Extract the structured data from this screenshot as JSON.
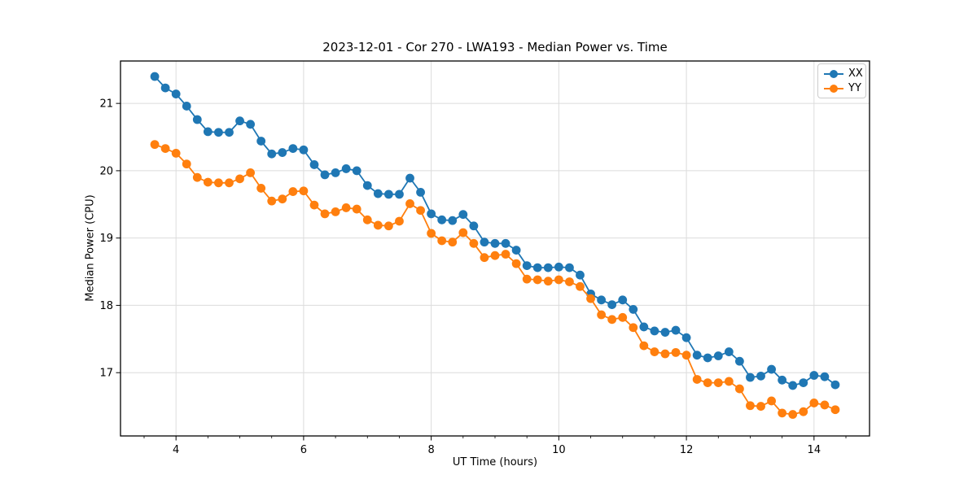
{
  "figure": {
    "title": "2023-12-01 - Cor 270 - LWA193 - Median Power vs. Time",
    "xlabel": "UT Time (hours)",
    "ylabel": "Median Power (CPU)"
  },
  "chart_data": {
    "type": "line",
    "title": "2023-12-01 - Cor 270 - LWA193 - Median Power vs. Time",
    "xlabel": "UT Time (hours)",
    "ylabel": "Median Power (CPU)",
    "xlim": [
      3.13,
      14.87
    ],
    "ylim": [
      16.06,
      21.63
    ],
    "xticks": [
      4,
      6,
      8,
      10,
      12,
      14
    ],
    "yticks": [
      17,
      18,
      19,
      20,
      21
    ],
    "minor_xtick_step": 0.5,
    "grid": true,
    "grid_color": "#dcdcdc",
    "legend": {
      "position": "upper right",
      "entries": [
        "XX",
        "YY"
      ]
    },
    "marker": "o",
    "x": [
      3.6667,
      3.8333,
      4,
      4.1667,
      4.3333,
      4.5,
      4.6667,
      4.8333,
      5,
      5.1667,
      5.3333,
      5.5,
      5.6667,
      5.8333,
      6,
      6.1667,
      6.3333,
      6.5,
      6.6667,
      6.8333,
      7,
      7.1667,
      7.3333,
      7.5,
      7.6667,
      7.8333,
      8,
      8.1667,
      8.3333,
      8.5,
      8.6667,
      8.8333,
      9,
      9.1667,
      9.3333,
      9.5,
      9.6667,
      9.8333,
      10,
      10.1667,
      10.3333,
      10.5,
      10.6667,
      10.8333,
      11,
      11.1667,
      11.3333,
      11.5,
      11.6667,
      11.8333,
      12,
      12.1667,
      12.3333,
      12.5,
      12.6667,
      12.8333,
      13,
      13.1667,
      13.3333,
      13.5,
      13.6667,
      13.8333,
      14,
      14.1667,
      14.3333
    ],
    "series": [
      {
        "name": "XX",
        "color": "#1f77b4",
        "values": [
          21.4,
          21.23,
          21.14,
          20.96,
          20.76,
          20.58,
          20.57,
          20.57,
          20.74,
          20.69,
          20.44,
          20.25,
          20.27,
          20.33,
          20.31,
          20.09,
          19.94,
          19.97,
          20.03,
          20.0,
          19.78,
          19.66,
          19.65,
          19.65,
          19.89,
          19.68,
          19.36,
          19.27,
          19.26,
          19.35,
          19.18,
          18.94,
          18.92,
          18.92,
          18.82,
          18.59,
          18.56,
          18.56,
          18.57,
          18.56,
          18.45,
          18.17,
          18.08,
          18.01,
          18.08,
          17.94,
          17.68,
          17.62,
          17.6,
          17.63,
          17.52,
          17.26,
          17.22,
          17.25,
          17.31,
          17.17,
          16.93,
          16.95,
          17.05,
          16.89,
          16.81,
          16.85,
          16.96,
          16.94,
          16.82
        ]
      },
      {
        "name": "YY",
        "color": "#ff7f0e",
        "values": [
          20.39,
          20.33,
          20.26,
          20.1,
          19.9,
          19.83,
          19.82,
          19.82,
          19.88,
          19.97,
          19.74,
          19.55,
          19.58,
          19.69,
          19.7,
          19.49,
          19.36,
          19.39,
          19.45,
          19.43,
          19.27,
          19.19,
          19.18,
          19.25,
          19.51,
          19.41,
          19.07,
          18.96,
          18.94,
          19.08,
          18.92,
          18.71,
          18.74,
          18.76,
          18.62,
          18.39,
          18.38,
          18.36,
          18.38,
          18.35,
          18.28,
          18.1,
          17.86,
          17.79,
          17.82,
          17.67,
          17.4,
          17.31,
          17.28,
          17.3,
          17.26,
          16.9,
          16.85,
          16.85,
          16.87,
          16.76,
          16.51,
          16.5,
          16.58,
          16.4,
          16.38,
          16.42,
          16.55,
          16.52,
          16.45
        ]
      }
    ]
  }
}
